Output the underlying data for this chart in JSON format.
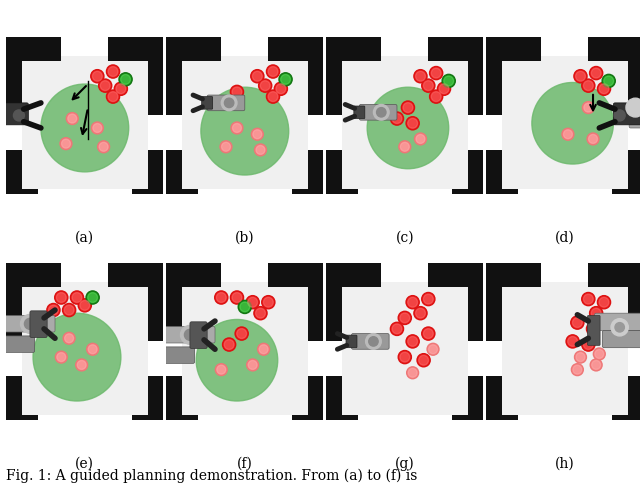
{
  "subtitle_labels": [
    "(a)",
    "(b)",
    "(c)",
    "(d)",
    "(e)",
    "(f)",
    "(g)",
    "(h)"
  ],
  "caption": "Fig. 1: A guided planning demonstration. From (a) to (f) is",
  "figsize": [
    6.4,
    4.86
  ],
  "dpi": 100,
  "background_color": "#ffffff",
  "caption_fontsize": 10,
  "label_fontsize": 10,
  "scene_bg": "#f0f0f0",
  "border_color": "#111111",
  "green_color": "#6db96d",
  "red_bright": "#ff2222",
  "red_dark": "#cc1111",
  "red_inside": "#ff7777",
  "green_cyl": "#22bb22",
  "robot_dark": "#222222",
  "robot_mid": "#888888",
  "robot_light": "#cccccc"
}
